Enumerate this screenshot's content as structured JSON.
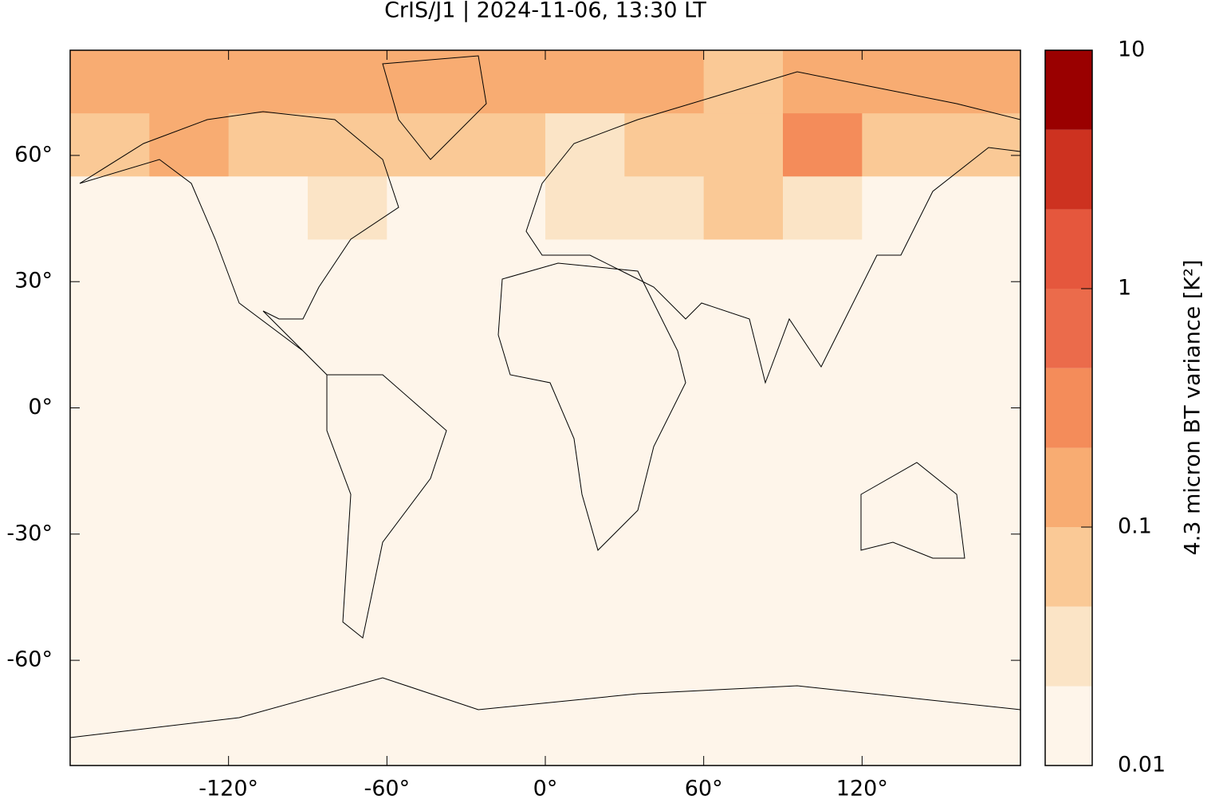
{
  "chart_data": {
    "type": "map",
    "title": "CrIS/J1 | 2024-11-06, 13:30 LT",
    "xlim": [
      -180,
      180
    ],
    "ylim": [
      -85,
      85
    ],
    "xticks": [
      {
        "value": -120,
        "label": "-120°"
      },
      {
        "value": -60,
        "label": "-60°"
      },
      {
        "value": 0,
        "label": "0°"
      },
      {
        "value": 60,
        "label": "60°"
      },
      {
        "value": 120,
        "label": "120°"
      }
    ],
    "yticks": [
      {
        "value": 60,
        "label": "60°"
      },
      {
        "value": 30,
        "label": "30°"
      },
      {
        "value": 0,
        "label": "0°"
      },
      {
        "value": -30,
        "label": "-30°"
      },
      {
        "value": -60,
        "label": "-60°"
      }
    ],
    "field": {
      "lon_edges": [
        -180,
        -150,
        -120,
        -90,
        -60,
        -30,
        0,
        30,
        60,
        90,
        120,
        150,
        180
      ],
      "lat_edges": [
        85,
        70,
        55,
        40,
        -85
      ],
      "values": [
        [
          0.15,
          0.12,
          0.1,
          0.15,
          0.2,
          0.15,
          0.1,
          0.12,
          0.08,
          0.1,
          0.15,
          0.1
        ],
        [
          0.08,
          0.1,
          0.06,
          0.05,
          0.06,
          0.05,
          0.04,
          0.05,
          0.06,
          0.3,
          0.08,
          0.06
        ],
        [
          0.02,
          0.02,
          0.02,
          0.03,
          0.02,
          0.02,
          0.03,
          0.03,
          0.05,
          0.03,
          0.02,
          0.02
        ],
        [
          0.01,
          0.01,
          0.01,
          0.01,
          0.01,
          0.01,
          0.01,
          0.01,
          0.01,
          0.01,
          0.01,
          0.01
        ]
      ]
    },
    "colorbar": {
      "label": "4.3 micron BT variance [K²]",
      "log_scale": true,
      "ylim": [
        0.01,
        10
      ],
      "yticks": [
        0.01,
        0.1,
        1,
        10
      ],
      "levels": [
        0.01,
        0.0215,
        0.0464,
        0.1,
        0.215,
        0.464,
        1,
        2.15,
        4.64,
        10
      ],
      "colors": [
        "#fef5ea",
        "#fbe4c6",
        "#fac996",
        "#f8ac72",
        "#f48c5a",
        "#eb6b4b",
        "#e5573d",
        "#cd3220",
        "#9a0000"
      ]
    }
  }
}
